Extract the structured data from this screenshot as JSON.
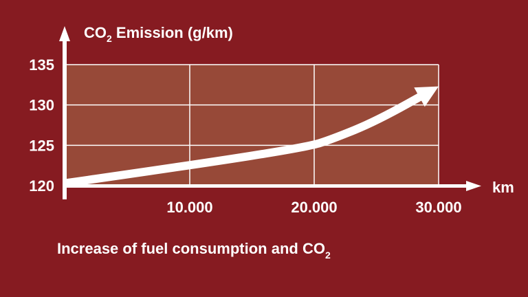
{
  "colors": {
    "background": "#861b21",
    "plot_area": "#974938",
    "foreground": "#ffffff"
  },
  "caption": {
    "text": "Increase of fuel consumption and CO",
    "subscript": "2"
  },
  "chart_data": {
    "type": "line",
    "title": "CO",
    "title_subscript": "2",
    "title_suffix": " Emission (g/km)",
    "xlabel": "km",
    "ylabel": "",
    "x_tick_labels": [
      "10.000",
      "20.000",
      "30.000"
    ],
    "x_tick_values": [
      10000,
      20000,
      30000
    ],
    "y_tick_labels": [
      "120",
      "125",
      "130",
      "135"
    ],
    "y_tick_values": [
      120,
      125,
      130,
      135
    ],
    "xlim": [
      0,
      30000
    ],
    "ylim": [
      120,
      135
    ],
    "grid": true,
    "series": [
      {
        "style": "arrow",
        "x": [
          0,
          10000,
          19500,
          21500,
          25000,
          30000
        ],
        "y": [
          120.3,
          122.5,
          124.8,
          125.8,
          128.0,
          132.3
        ]
      }
    ]
  }
}
